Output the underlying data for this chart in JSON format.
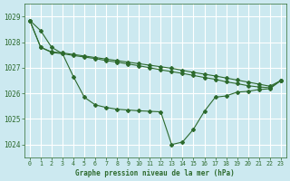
{
  "title": "Graphe pression niveau de la mer (hPa)",
  "bg_color": "#cce9f0",
  "grid_color": "#ffffff",
  "line_color": "#2d6a2d",
  "xlim": [
    -0.5,
    23.5
  ],
  "ylim": [
    1023.5,
    1029.5
  ],
  "yticks": [
    1024,
    1025,
    1026,
    1027,
    1028,
    1029
  ],
  "xticks": [
    0,
    1,
    2,
    3,
    4,
    5,
    6,
    7,
    8,
    9,
    10,
    11,
    12,
    13,
    14,
    15,
    16,
    17,
    18,
    19,
    20,
    21,
    22,
    23
  ],
  "series": [
    [
      1028.85,
      1028.45,
      1027.8,
      1027.55,
      1026.65,
      1025.85,
      1025.55,
      1025.45,
      1025.38,
      1025.35,
      1025.32,
      1025.3,
      1025.28,
      1024.0,
      1024.1,
      1024.6,
      1025.3,
      1025.85,
      1025.9,
      1026.05,
      1026.08,
      1026.15,
      1026.18,
      1026.5
    ],
    [
      1028.85,
      1027.8,
      1027.6,
      1027.55,
      1027.48,
      1027.42,
      1027.36,
      1027.28,
      1027.22,
      1027.15,
      1027.08,
      1027.0,
      1026.92,
      1026.85,
      1026.78,
      1026.7,
      1026.62,
      1026.55,
      1026.45,
      1026.38,
      1026.3,
      1026.25,
      1026.22,
      1026.5
    ],
    [
      1028.85,
      1027.8,
      1027.62,
      1027.58,
      1027.52,
      1027.46,
      1027.4,
      1027.34,
      1027.28,
      1027.22,
      1027.16,
      1027.1,
      1027.04,
      1026.98,
      1026.9,
      1026.82,
      1026.75,
      1026.68,
      1026.6,
      1026.52,
      1026.44,
      1026.36,
      1026.28,
      1026.5
    ]
  ]
}
